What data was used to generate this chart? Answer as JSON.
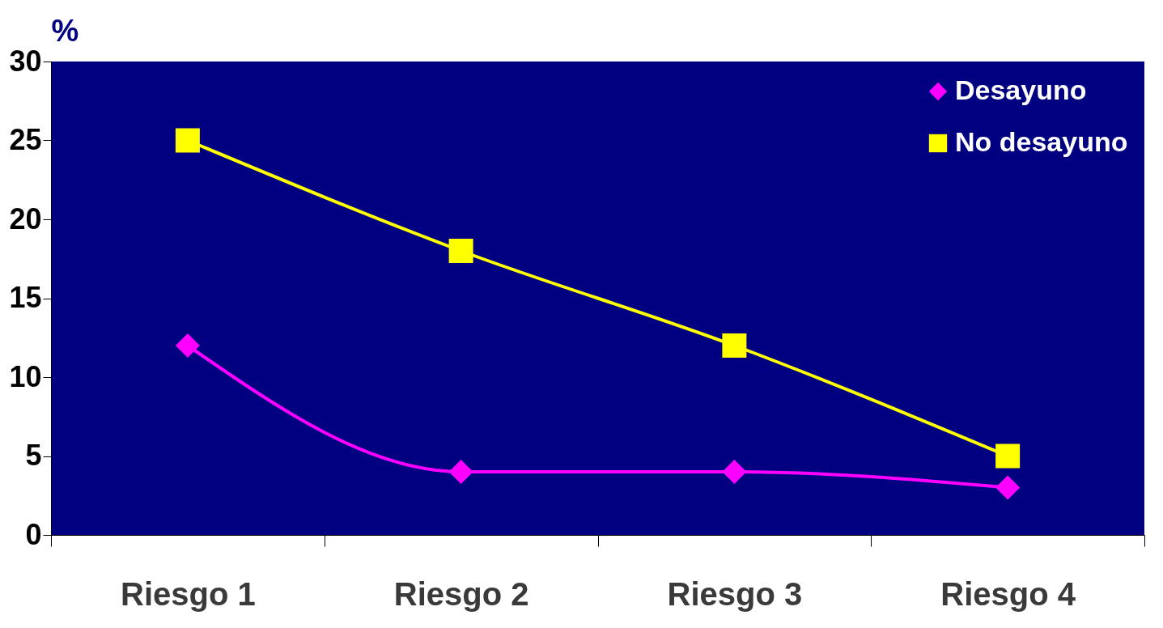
{
  "chart_data": {
    "type": "line",
    "ylabel": "%",
    "categories": [
      "Riesgo 1",
      "Riesgo 2",
      "Riesgo 3",
      "Riesgo 4"
    ],
    "series": [
      {
        "name": "Desayuno",
        "color": "#ff00ff",
        "marker": "diamond",
        "values": [
          12,
          4,
          4,
          3
        ]
      },
      {
        "name": "No desayuno",
        "color": "#ffff00",
        "marker": "square",
        "values": [
          25,
          18,
          12,
          5
        ]
      }
    ],
    "ylim": [
      0,
      30
    ],
    "yticks": [
      0,
      5,
      10,
      15,
      20,
      25,
      30
    ],
    "grid": false,
    "legend": "top right",
    "line_style": "solid"
  }
}
